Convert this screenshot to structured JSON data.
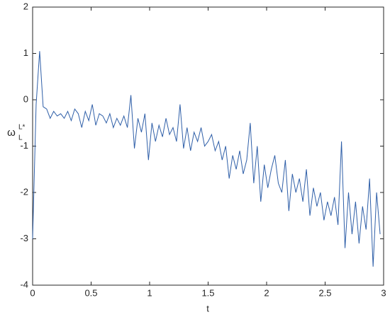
{
  "chart_data": {
    "type": "line",
    "x_label": "t",
    "y_label": "ω",
    "y_label_sup": "L*",
    "y_label_sub": "L",
    "x": [
      0,
      0.03,
      0.06,
      0.09,
      0.12,
      0.15,
      0.18,
      0.21,
      0.24,
      0.27,
      0.3,
      0.33,
      0.36,
      0.39,
      0.42,
      0.45,
      0.48,
      0.51,
      0.54,
      0.57,
      0.6,
      0.63,
      0.66,
      0.69,
      0.72,
      0.75,
      0.78,
      0.81,
      0.84,
      0.87,
      0.9,
      0.93,
      0.96,
      0.99,
      1.02,
      1.05,
      1.08,
      1.11,
      1.14,
      1.17,
      1.2,
      1.23,
      1.26,
      1.29,
      1.32,
      1.35,
      1.38,
      1.41,
      1.44,
      1.47,
      1.5,
      1.53,
      1.56,
      1.59,
      1.62,
      1.65,
      1.68,
      1.71,
      1.74,
      1.77,
      1.8,
      1.83,
      1.86,
      1.89,
      1.92,
      1.95,
      1.98,
      2.01,
      2.04,
      2.07,
      2.1,
      2.13,
      2.16,
      2.19,
      2.22,
      2.25,
      2.28,
      2.31,
      2.34,
      2.37,
      2.4,
      2.43,
      2.46,
      2.49,
      2.52,
      2.55,
      2.58,
      2.61,
      2.64,
      2.67,
      2.7,
      2.73,
      2.76,
      2.79,
      2.82,
      2.85,
      2.88,
      2.91,
      2.94,
      2.97
    ],
    "series": [
      {
        "color": "#2f5fa8",
        "values": [
          -3.0,
          -0.1,
          1.05,
          -0.15,
          -0.2,
          -0.4,
          -0.25,
          -0.35,
          -0.3,
          -0.4,
          -0.25,
          -0.45,
          -0.2,
          -0.3,
          -0.6,
          -0.25,
          -0.45,
          -0.1,
          -0.55,
          -0.3,
          -0.35,
          -0.5,
          -0.3,
          -0.6,
          -0.4,
          -0.55,
          -0.35,
          -0.6,
          0.1,
          -1.05,
          -0.4,
          -0.7,
          -0.3,
          -1.3,
          -0.5,
          -0.9,
          -0.55,
          -0.8,
          -0.4,
          -0.75,
          -0.6,
          -0.9,
          -0.1,
          -1.05,
          -0.6,
          -1.1,
          -0.7,
          -0.9,
          -0.6,
          -1.0,
          -0.9,
          -0.75,
          -1.1,
          -0.9,
          -1.3,
          -1.0,
          -1.7,
          -1.2,
          -1.5,
          -1.1,
          -1.6,
          -1.3,
          -0.5,
          -1.8,
          -1.0,
          -2.2,
          -1.4,
          -1.9,
          -1.5,
          -1.2,
          -1.8,
          -2.0,
          -1.3,
          -2.4,
          -1.6,
          -2.0,
          -1.7,
          -2.2,
          -1.5,
          -2.5,
          -1.9,
          -2.3,
          -2.0,
          -2.6,
          -2.2,
          -2.5,
          -2.1,
          -2.7,
          -0.9,
          -3.2,
          -2.0,
          -2.9,
          -2.2,
          -3.1,
          -2.3,
          -2.8,
          -1.7,
          -3.6,
          -2.0,
          -2.9
        ]
      }
    ],
    "xlim": [
      0,
      3
    ],
    "xticks": [
      0,
      0.5,
      1,
      1.5,
      2,
      2.5,
      3
    ],
    "ylim": [
      -4,
      2
    ],
    "yticks": [
      -4,
      -3,
      -2,
      -1,
      0,
      1,
      2
    ]
  }
}
